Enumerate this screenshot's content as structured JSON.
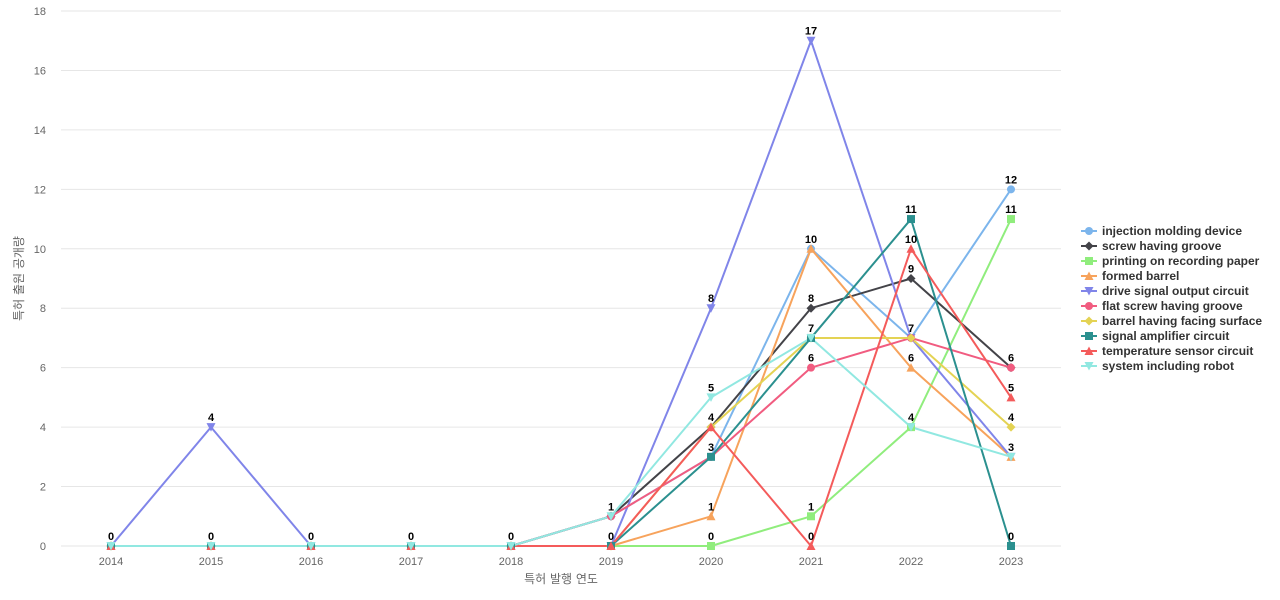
{
  "chart_data": {
    "type": "line",
    "title": "",
    "xlabel": "특허 발행 연도",
    "ylabel": "특허 출원 공개량",
    "categories": [
      "2014",
      "2015",
      "2016",
      "2017",
      "2018",
      "2019",
      "2020",
      "2021",
      "2022",
      "2023"
    ],
    "ylim": [
      0,
      18
    ],
    "yticks": [
      0,
      2,
      4,
      6,
      8,
      10,
      12,
      14,
      16,
      18
    ],
    "grid": true,
    "legend_position": "right",
    "series": [
      {
        "name": "injection molding device",
        "color": "#7cb5ec",
        "marker": "circle",
        "values": [
          0,
          0,
          0,
          0,
          0,
          1,
          3,
          10,
          7,
          12
        ]
      },
      {
        "name": "screw having groove",
        "color": "#434348",
        "marker": "diamond",
        "values": [
          0,
          0,
          0,
          0,
          0,
          1,
          4,
          8,
          9,
          6
        ]
      },
      {
        "name": "printing on recording paper",
        "color": "#90ed7d",
        "marker": "square",
        "values": [
          0,
          0,
          0,
          0,
          0,
          0,
          0,
          1,
          4,
          11
        ]
      },
      {
        "name": "formed barrel",
        "color": "#f7a35c",
        "marker": "triangle",
        "values": [
          0,
          0,
          0,
          0,
          0,
          0,
          1,
          10,
          6,
          3
        ]
      },
      {
        "name": "drive signal output circuit",
        "color": "#8085e9",
        "marker": "triangle-down",
        "values": [
          0,
          4,
          0,
          0,
          0,
          0,
          8,
          17,
          7,
          3
        ]
      },
      {
        "name": "flat screw having groove",
        "color": "#f15c80",
        "marker": "circle",
        "values": [
          0,
          0,
          0,
          0,
          0,
          1,
          3,
          6,
          7,
          6
        ]
      },
      {
        "name": "barrel having facing surface",
        "color": "#e4d354",
        "marker": "diamond",
        "values": [
          0,
          0,
          0,
          0,
          0,
          0,
          4,
          7,
          7,
          4
        ]
      },
      {
        "name": "signal amplifier circuit",
        "color": "#2b908f",
        "marker": "square",
        "values": [
          0,
          0,
          0,
          0,
          0,
          0,
          3,
          7,
          11,
          0
        ]
      },
      {
        "name": "temperature sensor circuit",
        "color": "#f45b5b",
        "marker": "triangle",
        "values": [
          0,
          0,
          0,
          0,
          0,
          0,
          4,
          0,
          10,
          5
        ]
      },
      {
        "name": "system including robot",
        "color": "#91e8e1",
        "marker": "triangle-down",
        "values": [
          0,
          0,
          0,
          0,
          0,
          1,
          5,
          7,
          4,
          3
        ]
      }
    ],
    "data_labels": [
      {
        "x": "2014",
        "text": "0",
        "value": 0
      },
      {
        "x": "2015",
        "text": "4",
        "value": 4
      },
      {
        "x": "2015",
        "text": "0",
        "value": 0
      },
      {
        "x": "2016",
        "text": "0",
        "value": 0
      },
      {
        "x": "2017",
        "text": "0",
        "value": 0
      },
      {
        "x": "2018",
        "text": "0",
        "value": 0
      },
      {
        "x": "2019",
        "text": "1",
        "value": 1
      },
      {
        "x": "2019",
        "text": "0",
        "value": 0
      },
      {
        "x": "2020",
        "text": "8",
        "value": 8
      },
      {
        "x": "2020",
        "text": "5",
        "value": 5
      },
      {
        "x": "2020",
        "text": "4",
        "value": 4
      },
      {
        "x": "2020",
        "text": "3",
        "value": 3
      },
      {
        "x": "2020",
        "text": "1",
        "value": 1
      },
      {
        "x": "2020",
        "text": "0",
        "value": 0
      },
      {
        "x": "2021",
        "text": "17",
        "value": 17
      },
      {
        "x": "2021",
        "text": "10",
        "value": 10
      },
      {
        "x": "2021",
        "text": "8",
        "value": 8
      },
      {
        "x": "2021",
        "text": "7",
        "value": 7
      },
      {
        "x": "2021",
        "text": "6",
        "value": 6
      },
      {
        "x": "2021",
        "text": "1",
        "value": 1
      },
      {
        "x": "2021",
        "text": "0",
        "value": 0
      },
      {
        "x": "2022",
        "text": "11",
        "value": 11
      },
      {
        "x": "2022",
        "text": "10",
        "value": 10
      },
      {
        "x": "2022",
        "text": "9",
        "value": 9
      },
      {
        "x": "2022",
        "text": "7",
        "value": 7
      },
      {
        "x": "2022",
        "text": "6",
        "value": 6
      },
      {
        "x": "2022",
        "text": "4",
        "value": 4
      },
      {
        "x": "2023",
        "text": "12",
        "value": 12
      },
      {
        "x": "2023",
        "text": "11",
        "value": 11
      },
      {
        "x": "2023",
        "text": "6",
        "value": 6
      },
      {
        "x": "2023",
        "text": "5",
        "value": 5
      },
      {
        "x": "2023",
        "text": "4",
        "value": 4
      },
      {
        "x": "2023",
        "text": "3",
        "value": 3
      },
      {
        "x": "2023",
        "text": "0",
        "value": 0
      }
    ]
  }
}
